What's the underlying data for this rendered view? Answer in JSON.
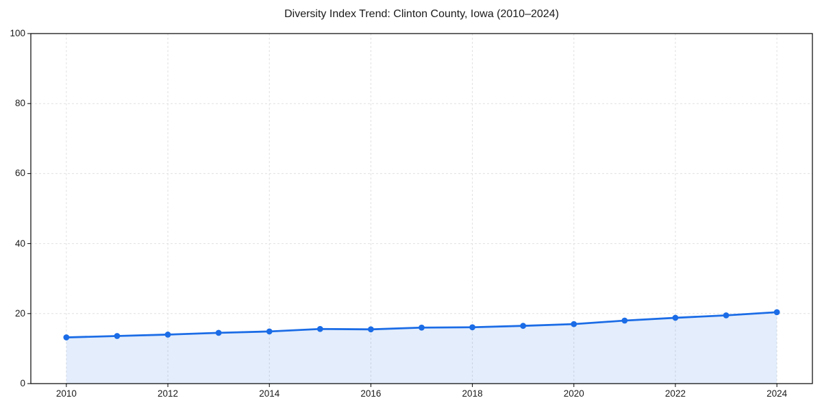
{
  "page": {
    "title": "Diversity Index Trend: Clinton County, Iowa (2010–2024)"
  },
  "chart_data": {
    "type": "line",
    "title": "Diversity Index Trend: Clinton County, Iowa (2010–2024)",
    "x": [
      2010,
      2011,
      2012,
      2013,
      2014,
      2015,
      2016,
      2017,
      2018,
      2019,
      2020,
      2021,
      2022,
      2023,
      2024
    ],
    "series": [
      {
        "name": "Diversity Index",
        "values": [
          13.2,
          13.6,
          14.0,
          14.5,
          14.9,
          15.6,
          15.5,
          16.0,
          16.1,
          16.5,
          17.0,
          18.0,
          18.8,
          19.5,
          20.4
        ]
      }
    ],
    "x_tick_labels": [
      "2010",
      "2012",
      "2014",
      "2016",
      "2018",
      "2020",
      "2022",
      "2024"
    ],
    "x_ticks": [
      2010,
      2012,
      2014,
      2016,
      2018,
      2020,
      2022,
      2024
    ],
    "y_tick_labels": [
      "0",
      "20",
      "40",
      "60",
      "80",
      "100"
    ],
    "y_ticks": [
      0,
      20,
      40,
      60,
      80,
      100
    ],
    "xlim": [
      2009.3,
      2024.7
    ],
    "ylim": [
      0,
      100
    ],
    "xlabel": "",
    "ylabel": "",
    "grid": true,
    "legend": "none",
    "colors": {
      "line": "#1b6ce6",
      "marker": "#1b6ce6",
      "area_fill": "#1b6ce6",
      "area_fill_opacity": 0.12,
      "gridline": "#e0e0e0",
      "spine": "#000000",
      "text": "#1a1a1a"
    },
    "style": {
      "line_width": 2.8,
      "marker_radius": 4.4,
      "grid_dash": "3 3",
      "area": true
    }
  }
}
